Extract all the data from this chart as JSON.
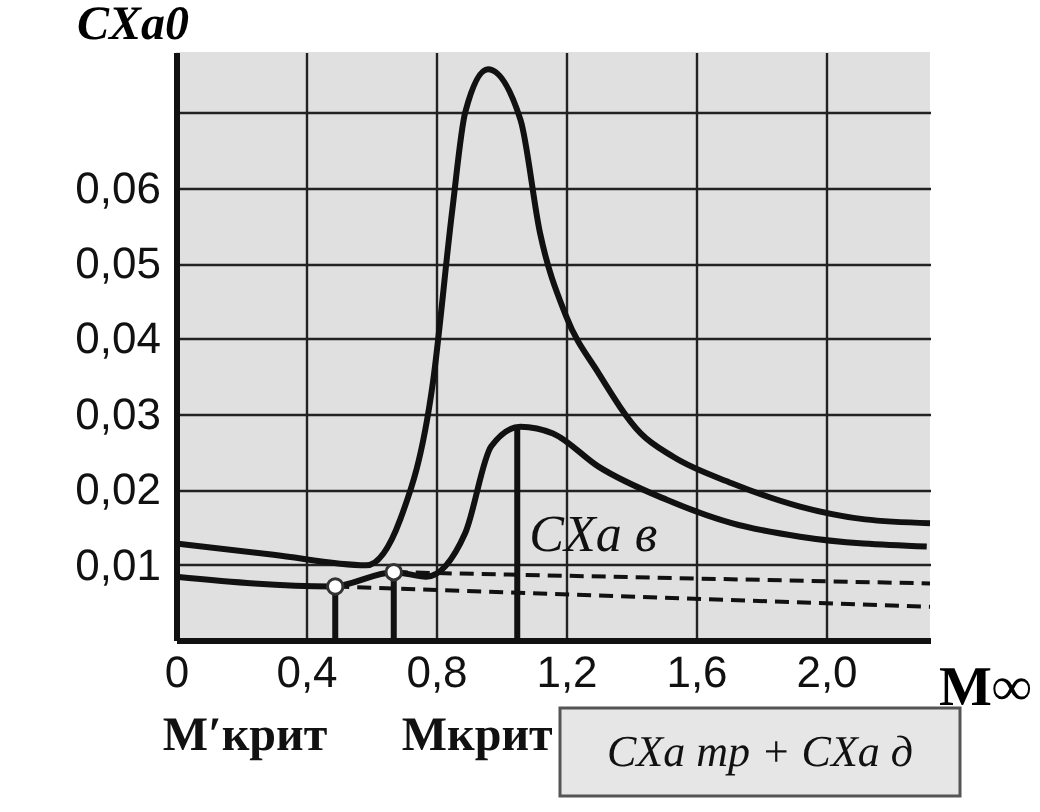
{
  "chart_data": {
    "type": "line",
    "xlabel": "M∞",
    "ylabel": "CXa0",
    "xlim": [
      0,
      2.32
    ],
    "ylim": [
      0,
      0.078
    ],
    "xticks": [
      {
        "value": 0,
        "label": "0"
      },
      {
        "value": 0.4,
        "label": "0,4"
      },
      {
        "value": 0.8,
        "label": "0,8"
      },
      {
        "value": 1.2,
        "label": "1,2"
      },
      {
        "value": 1.6,
        "label": "1,6"
      },
      {
        "value": 2.0,
        "label": "2,0"
      }
    ],
    "yticks": [
      {
        "value": 0.01,
        "label": "0,01"
      },
      {
        "value": 0.02,
        "label": "0,02"
      },
      {
        "value": 0.03,
        "label": "0,03"
      },
      {
        "value": 0.04,
        "label": "0,04"
      },
      {
        "value": 0.05,
        "label": "0,05"
      },
      {
        "value": 0.06,
        "label": "0,06"
      },
      {
        "value": 0.07,
        "label": null
      }
    ],
    "grid": true,
    "marker": "none",
    "series": [
      {
        "color": "#111111",
        "line_style": "solid",
        "x": [
          0,
          0.3,
          0.585,
          0.69,
          0.79,
          0.85,
          0.89,
          0.96,
          1.06,
          1.12,
          1.2,
          1.3,
          1.43,
          1.53,
          1.71,
          1.92,
          2.12,
          2.32
        ],
        "values": [
          0.0128,
          0.0113,
          0.0099,
          0.016,
          0.034,
          0.057,
          0.07,
          0.0757,
          0.069,
          0.054,
          0.043,
          0.0354,
          0.0274,
          0.0243,
          0.0208,
          0.0177,
          0.016,
          0.0155
        ]
      },
      {
        "color": "#111111",
        "line_style": "solid",
        "x": [
          0,
          0.48,
          0.67,
          0.77,
          0.89,
          0.97,
          1.06,
          1.16,
          1.3,
          1.51,
          1.71,
          1.92,
          2.31
        ],
        "values": [
          0.0084,
          0.0071,
          0.009,
          0.0084,
          0.0142,
          0.0257,
          0.0283,
          0.0274,
          0.023,
          0.0186,
          0.0155,
          0.0137,
          0.0124
        ]
      },
      {
        "color": "#111111",
        "line_style": "dashed",
        "x": [
          0.67,
          2.32
        ],
        "values": [
          0.009,
          0.0075
        ]
      },
      {
        "color": "#111111",
        "line_style": "dashed",
        "x": [
          0.49,
          2.32
        ],
        "values": [
          0.0071,
          0.0044
        ]
      },
      {
        "color": "#111111",
        "line_style": "solid",
        "x": [
          0.49,
          0.49
        ],
        "values": [
          0,
          0.0071
        ]
      },
      {
        "color": "#111111",
        "line_style": "solid",
        "x": [
          0.67,
          0.67
        ],
        "values": [
          0,
          0.009
        ]
      },
      {
        "color": "#111111",
        "line_style": "solid",
        "x": [
          1.05,
          1.05
        ],
        "values": [
          0,
          0.028
        ]
      },
      {
        "type": "scatter",
        "marker": "circle",
        "color": "#ffffff",
        "x": [
          0.49,
          0.67
        ],
        "values": [
          0.0071,
          0.009
        ]
      }
    ],
    "annotations": [
      {
        "text": "M′крит",
        "x": 0.49,
        "y": 0.0071
      },
      {
        "text": "Mкрит",
        "x": 0.67,
        "y": 0.009
      },
      {
        "text": "CXa в",
        "x": 1.05,
        "y": 0.028
      },
      "CXa тр + CXa д"
    ]
  }
}
